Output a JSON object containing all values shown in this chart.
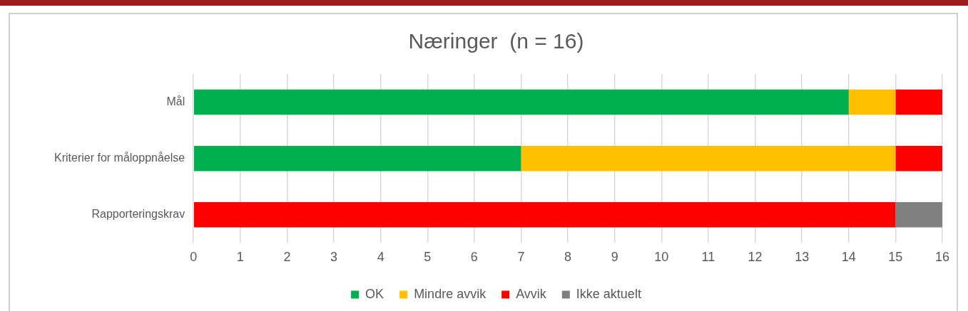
{
  "chart_data": {
    "type": "bar",
    "title": "Næringer  (n = 16)",
    "orientation": "horizontal",
    "stacked": true,
    "categories": [
      "Mål",
      "Kriterier for måloppnåelse",
      "Rapporteringskrav"
    ],
    "series": [
      {
        "name": "OK",
        "color": "#00b050",
        "values": [
          14,
          7,
          0
        ]
      },
      {
        "name": "Mindre avvik",
        "color": "#ffc000",
        "values": [
          1,
          8,
          0
        ]
      },
      {
        "name": "Avvik",
        "color": "#ff0000",
        "values": [
          1,
          1,
          15
        ]
      },
      {
        "name": "Ikke aktuelt",
        "color": "#808080",
        "values": [
          0,
          0,
          1
        ]
      }
    ],
    "xlim": [
      0,
      16
    ],
    "xticks": [
      0,
      1,
      2,
      3,
      4,
      5,
      6,
      7,
      8,
      9,
      10,
      11,
      12,
      13,
      14,
      15,
      16
    ],
    "grid": "x",
    "legend": "bottom"
  }
}
